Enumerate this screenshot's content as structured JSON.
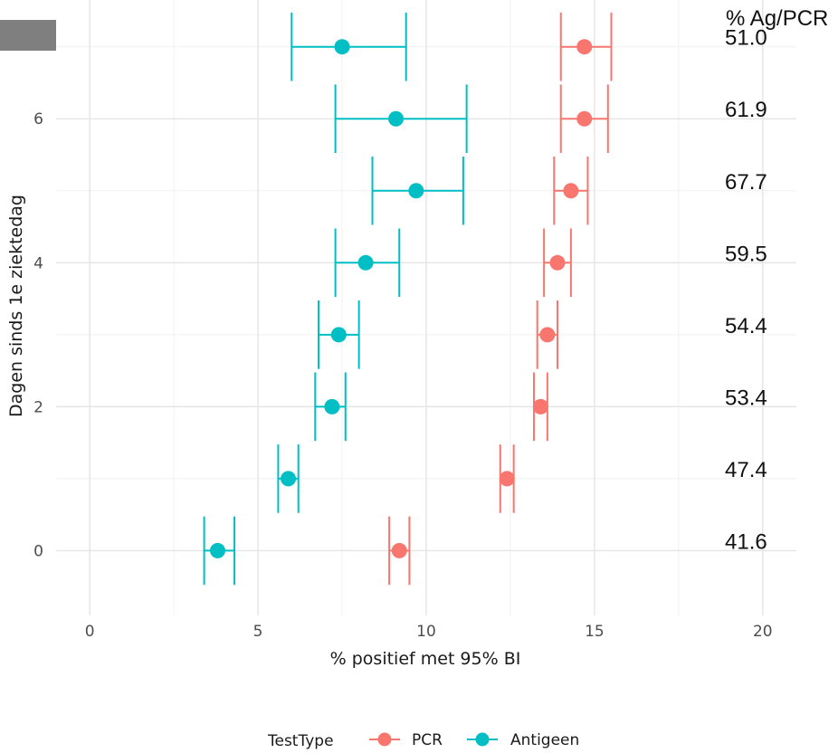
{
  "chart_data": {
    "type": "scatter",
    "xlabel": "% positief met 95% BI",
    "ylabel": "Dagen sinds 1e ziektedag",
    "xlim": [
      -1,
      21
    ],
    "ylim": [
      -0.9,
      7.65
    ],
    "x_ticks": [
      "0",
      "5",
      "10",
      "15",
      "20"
    ],
    "y_ticks": [
      "0",
      "2",
      "4",
      "6"
    ],
    "grid": true,
    "legend": {
      "title": "TestType",
      "position": "bottom",
      "entries": [
        "PCR",
        "Antigeen"
      ]
    },
    "ratio_header": "% Ag/PCR",
    "ratios": [
      {
        "day": 0,
        "label": "41.6"
      },
      {
        "day": 1,
        "label": "47.4"
      },
      {
        "day": 2,
        "label": "53.4"
      },
      {
        "day": 3,
        "label": "54.4"
      },
      {
        "day": 4,
        "label": "59.5"
      },
      {
        "day": 5,
        "label": "67.7"
      },
      {
        "day": 6,
        "label": "61.9"
      },
      {
        "day": 7,
        "label": "51.0"
      }
    ],
    "series": [
      {
        "name": "PCR",
        "color": "#f8766d",
        "points": [
          {
            "day": 0,
            "x": 9.2,
            "lo": 8.9,
            "hi": 9.5
          },
          {
            "day": 1,
            "x": 12.4,
            "lo": 12.2,
            "hi": 12.6
          },
          {
            "day": 2,
            "x": 13.4,
            "lo": 13.2,
            "hi": 13.6
          },
          {
            "day": 3,
            "x": 13.6,
            "lo": 13.3,
            "hi": 13.9
          },
          {
            "day": 4,
            "x": 13.9,
            "lo": 13.5,
            "hi": 14.3
          },
          {
            "day": 5,
            "x": 14.3,
            "lo": 13.8,
            "hi": 14.8
          },
          {
            "day": 6,
            "x": 14.7,
            "lo": 14.0,
            "hi": 15.4
          },
          {
            "day": 7,
            "x": 14.7,
            "lo": 14.0,
            "hi": 15.5
          }
        ]
      },
      {
        "name": "Antigeen",
        "color": "#00bfc4",
        "points": [
          {
            "day": 0,
            "x": 3.8,
            "lo": 3.4,
            "hi": 4.3
          },
          {
            "day": 1,
            "x": 5.9,
            "lo": 5.6,
            "hi": 6.2
          },
          {
            "day": 2,
            "x": 7.2,
            "lo": 6.7,
            "hi": 7.6
          },
          {
            "day": 3,
            "x": 7.4,
            "lo": 6.8,
            "hi": 8.0
          },
          {
            "day": 4,
            "x": 8.2,
            "lo": 7.3,
            "hi": 9.2
          },
          {
            "day": 5,
            "x": 9.7,
            "lo": 8.4,
            "hi": 11.1
          },
          {
            "day": 6,
            "x": 9.1,
            "lo": 7.3,
            "hi": 11.2
          },
          {
            "day": 7,
            "x": 7.5,
            "lo": 6.0,
            "hi": 9.4
          }
        ]
      }
    ]
  }
}
